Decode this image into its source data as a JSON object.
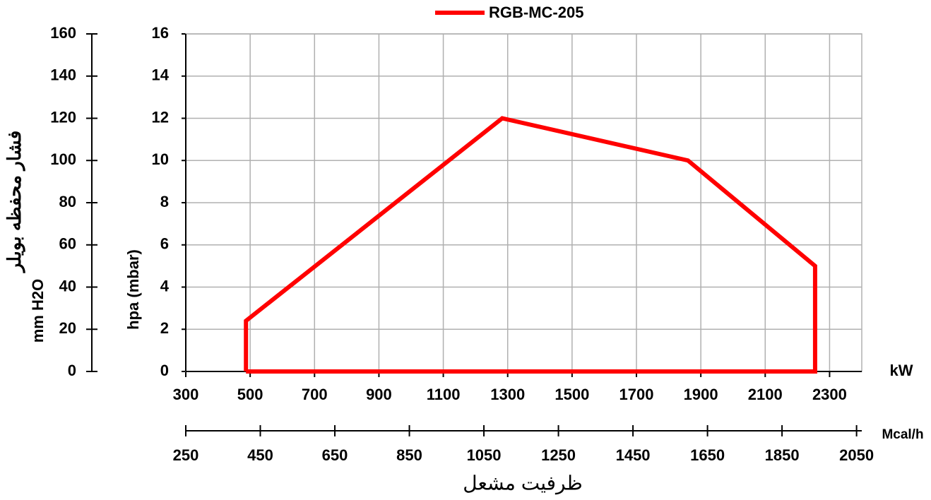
{
  "chart_data": {
    "type": "line",
    "series": [
      {
        "name": "RGB-MC-205",
        "color": "#ff0000",
        "x": [
          487,
          487,
          1283,
          1860,
          2255,
          2255,
          487
        ],
        "values": [
          0,
          2.4,
          12,
          10,
          5,
          0,
          0
        ]
      }
    ],
    "xlim": [
      300,
      2400
    ],
    "xticks": [
      300,
      500,
      700,
      900,
      1100,
      1300,
      1500,
      1700,
      1900,
      2100,
      2300
    ],
    "x_unit": "kW",
    "x2lim": [
      250,
      2064
    ],
    "x2ticks": [
      250,
      450,
      650,
      850,
      1050,
      1250,
      1450,
      1650,
      1850,
      2050
    ],
    "x2_unit": "Mcal/h",
    "xlabel": "ظرفیت مشعل",
    "ylim": [
      0,
      16
    ],
    "yticks": [
      0,
      2,
      4,
      6,
      8,
      10,
      12,
      14,
      16
    ],
    "ylabel": "hpa (mbar)",
    "y2lim": [
      0,
      160
    ],
    "y2ticks": [
      0,
      20,
      40,
      60,
      80,
      100,
      120,
      140,
      160
    ],
    "y2label": "فشار محفظه بویلر",
    "y2unit": "mm H2O",
    "grid": true
  }
}
